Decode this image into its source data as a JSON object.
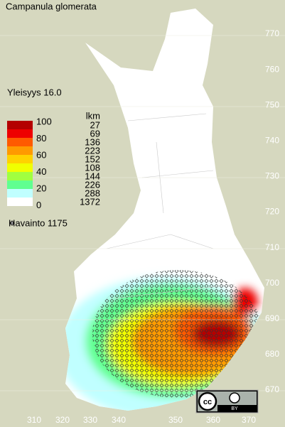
{
  "title": "Campanula glomerata",
  "frequency": "Yleisyys  16.0",
  "legend": {
    "scale_labels": [
      "100",
      "80",
      "60",
      "40",
      "20",
      "0"
    ],
    "count_header": "lkm",
    "counts": [
      "27",
      "69",
      "136",
      "223",
      "152",
      "108",
      "144",
      "226",
      "288",
      "1372"
    ],
    "colors": [
      "#b40000",
      "#ee0000",
      "#ff5a00",
      "#ff9a00",
      "#ffd200",
      "#f0ff00",
      "#a0ff40",
      "#60ff90",
      "#c0ffff",
      "#ffffff"
    ]
  },
  "observations": "Havainto 1175",
  "y_axis_labels": [
    "770",
    "760",
    "750",
    "740",
    "730",
    "720",
    "710",
    "700",
    "690",
    "680",
    "670"
  ],
  "x_axis_labels": [
    "310",
    "320",
    "330",
    "340",
    "350",
    "360",
    "370"
  ],
  "license": {
    "cc": "cc",
    "by": "BY"
  }
}
